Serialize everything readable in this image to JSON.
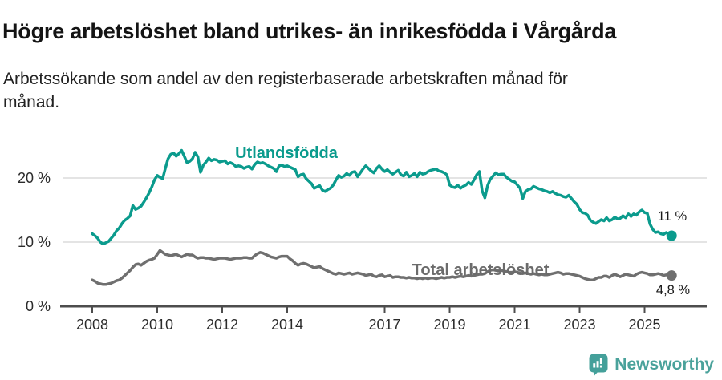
{
  "header": {
    "title": "Högre arbetslöshet bland utrikes- än inrikesfödda i Vårgårda",
    "subtitle": "Arbetssökande som andel av den registerbaserade arbetskraften månad för månad."
  },
  "footer": {
    "brand": "Newsworthy"
  },
  "colors": {
    "series_foreign": "#0b9b8d",
    "series_total": "#6f6f6f",
    "axis": "#4d4d4d",
    "gridline": "#dcdcdc",
    "brand_teal": "#44a09a",
    "end_label_text": "#1a1a1a"
  },
  "chart_data": {
    "type": "line",
    "title": "Högre arbetslöshet bland utrikes- än inrikesfödda i Vårgårda",
    "subtitle": "Arbetssökande som andel av den registerbaserade arbetskraften månad för månad.",
    "x_unit": "month",
    "x_start_year": 2008,
    "x_end_label_year": 2025.83,
    "x_ticks": [
      2008,
      2010,
      2012,
      2014,
      2017,
      2019,
      2021,
      2023,
      2025
    ],
    "y_ticks": [
      {
        "label": "0 %",
        "value": 0
      },
      {
        "label": "10 %",
        "value": 10
      },
      {
        "label": "20 %",
        "value": 20
      }
    ],
    "ylim": [
      0,
      26
    ],
    "grid": "horizontal-only",
    "legend_position": "inline-labels",
    "series": [
      {
        "name": "Utlandsfödda",
        "color": "#0b9b8d",
        "end_label": "11 %",
        "end_value": 11,
        "values": [
          11.3,
          11.0,
          10.6,
          10.0,
          9.7,
          9.9,
          10.1,
          10.6,
          11.1,
          11.8,
          12.2,
          12.9,
          13.4,
          13.7,
          14.1,
          15.7,
          15.1,
          15.3,
          15.6,
          16.2,
          16.9,
          17.7,
          18.6,
          19.7,
          20.4,
          20.1,
          19.9,
          21.5,
          23.0,
          23.7,
          23.9,
          23.4,
          23.8,
          24.3,
          23.4,
          22.4,
          22.6,
          23.0,
          24.0,
          23.3,
          20.9,
          22.0,
          22.5,
          23.1,
          22.7,
          22.9,
          22.8,
          22.5,
          22.6,
          22.7,
          22.2,
          22.4,
          22.2,
          21.8,
          21.9,
          21.8,
          21.5,
          21.7,
          21.8,
          21.4,
          22.1,
          22.5,
          22.3,
          22.4,
          22.2,
          21.9,
          21.7,
          21.5,
          21.0,
          21.9,
          22.0,
          21.8,
          21.9,
          21.7,
          21.5,
          21.3,
          20.2,
          20.5,
          20.6,
          19.9,
          19.5,
          19.1,
          18.4,
          18.6,
          18.8,
          18.1,
          17.9,
          18.2,
          18.4,
          18.9,
          19.7,
          20.4,
          20.1,
          20.3,
          20.7,
          20.4,
          20.9,
          21.0,
          20.2,
          20.8,
          21.4,
          21.9,
          21.5,
          21.1,
          20.8,
          21.5,
          21.9,
          21.4,
          21.0,
          21.3,
          20.9,
          20.6,
          20.9,
          21.2,
          20.5,
          20.3,
          20.9,
          20.2,
          20.4,
          20.7,
          20.2,
          20.9,
          20.6,
          20.7,
          21.0,
          21.2,
          21.3,
          21.4,
          21.1,
          21.0,
          20.8,
          20.5,
          18.9,
          18.6,
          18.5,
          18.9,
          18.4,
          18.7,
          18.9,
          19.3,
          19.0,
          19.7,
          20.5,
          21.0,
          18.0,
          16.9,
          18.8,
          19.8,
          20.3,
          20.8,
          20.5,
          20.6,
          20.6,
          20.1,
          19.8,
          19.5,
          19.4,
          18.9,
          18.4,
          16.8,
          17.9,
          18.2,
          18.3,
          18.7,
          18.5,
          18.3,
          18.2,
          18.0,
          17.9,
          17.7,
          17.9,
          17.6,
          17.4,
          17.3,
          17.1,
          17.0,
          17.3,
          16.8,
          16.3,
          15.9,
          15.1,
          14.6,
          14.5,
          14.2,
          13.4,
          13.1,
          12.9,
          13.2,
          13.5,
          13.3,
          13.8,
          13.3,
          13.5,
          13.9,
          13.6,
          13.7,
          14.1,
          13.8,
          14.4,
          14.0,
          14.4,
          14.2,
          14.7,
          15.0,
          14.6,
          14.5,
          12.8,
          12.0,
          11.5,
          11.6,
          11.3,
          11.2,
          11.5,
          11.2,
          11.0
        ]
      },
      {
        "name": "Total arbetslöshet",
        "color": "#6f6f6f",
        "end_label": "4,8 %",
        "end_value": 4.8,
        "values": [
          4.1,
          3.9,
          3.6,
          3.5,
          3.4,
          3.4,
          3.5,
          3.6,
          3.8,
          4.0,
          4.1,
          4.4,
          4.8,
          5.2,
          5.6,
          6.1,
          6.5,
          6.6,
          6.4,
          6.7,
          7.0,
          7.2,
          7.3,
          7.5,
          8.1,
          8.7,
          8.4,
          8.1,
          8.0,
          7.9,
          8.0,
          8.1,
          7.9,
          7.7,
          7.9,
          8.1,
          8.0,
          8.0,
          7.7,
          7.5,
          7.6,
          7.6,
          7.5,
          7.5,
          7.4,
          7.3,
          7.4,
          7.5,
          7.5,
          7.5,
          7.4,
          7.3,
          7.4,
          7.5,
          7.5,
          7.5,
          7.6,
          7.6,
          7.5,
          7.5,
          7.9,
          8.2,
          8.4,
          8.3,
          8.1,
          7.9,
          7.7,
          7.6,
          7.5,
          7.7,
          7.8,
          7.8,
          7.8,
          7.4,
          7.1,
          6.7,
          6.4,
          6.6,
          6.7,
          6.6,
          6.4,
          6.2,
          6.0,
          6.1,
          6.2,
          5.9,
          5.7,
          5.5,
          5.3,
          5.1,
          5.0,
          5.2,
          5.1,
          5.0,
          5.1,
          5.2,
          5.0,
          5.1,
          5.2,
          5.1,
          5.0,
          4.8,
          4.9,
          5.0,
          4.7,
          4.6,
          4.8,
          4.9,
          4.6,
          4.7,
          4.8,
          4.5,
          4.6,
          4.6,
          4.5,
          4.5,
          4.4,
          4.5,
          4.4,
          4.4,
          4.3,
          4.4,
          4.3,
          4.4,
          4.3,
          4.4,
          4.4,
          4.3,
          4.4,
          4.5,
          4.4,
          4.5,
          4.5,
          4.6,
          4.5,
          4.6,
          4.7,
          4.6,
          4.7,
          4.8,
          4.7,
          4.8,
          4.9,
          5.0,
          5.0,
          5.1,
          5.4,
          5.6,
          5.7,
          5.6,
          5.5,
          5.6,
          5.5,
          5.4,
          5.3,
          5.3,
          5.4,
          5.3,
          5.2,
          5.1,
          5.2,
          5.1,
          5.0,
          5.1,
          5.0,
          4.9,
          5.0,
          4.9,
          4.9,
          5.0,
          5.1,
          5.2,
          5.3,
          5.2,
          5.0,
          5.1,
          5.1,
          5.0,
          4.9,
          4.8,
          4.7,
          4.5,
          4.3,
          4.2,
          4.1,
          4.1,
          4.3,
          4.5,
          4.5,
          4.7,
          4.7,
          4.5,
          4.8,
          5.0,
          4.8,
          4.6,
          4.8,
          5.0,
          4.9,
          4.8,
          4.7,
          5.0,
          5.2,
          5.3,
          5.2,
          5.1,
          4.9,
          4.9,
          5.0,
          5.1,
          5.0,
          4.8,
          4.9,
          4.8,
          4.8
        ]
      }
    ]
  }
}
